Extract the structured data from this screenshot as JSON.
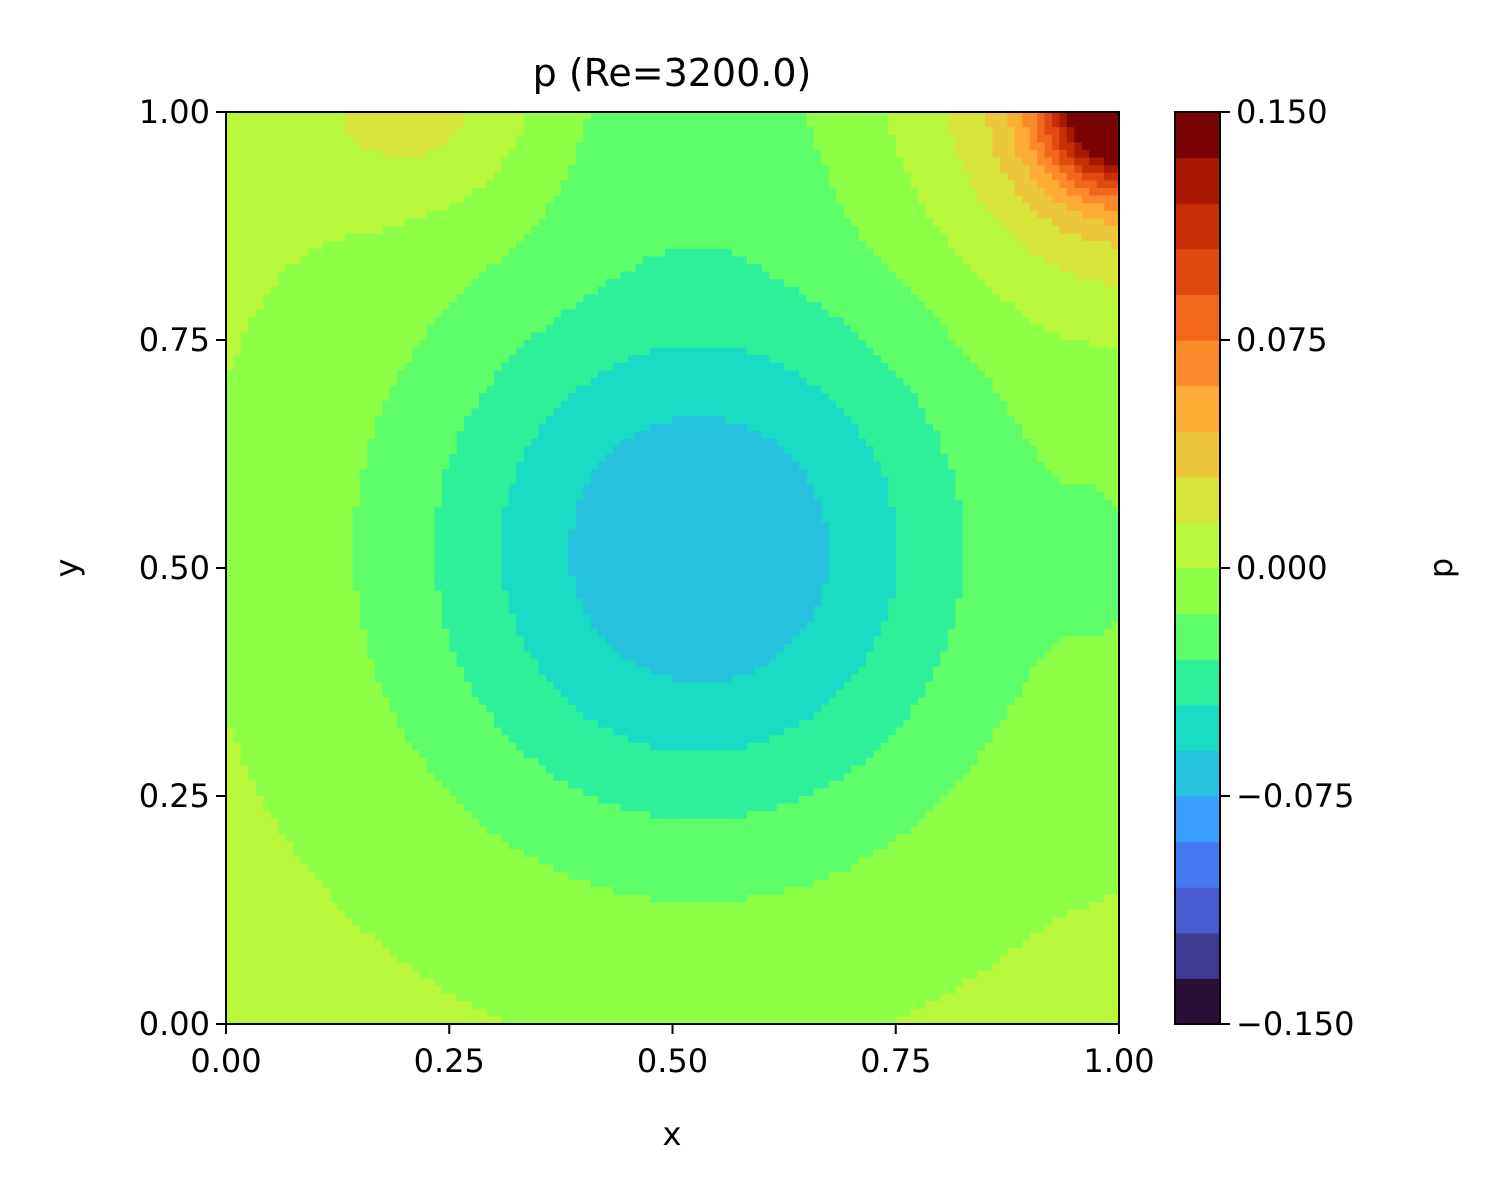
{
  "chart_data": {
    "type": "heatmap",
    "subtype": "filled-contour",
    "title": "p (Re=3200.0)",
    "xlabel": "x",
    "ylabel": "y",
    "xlim": [
      0.0,
      1.0
    ],
    "ylim": [
      0.0,
      1.0
    ],
    "xticks": [
      "0.00",
      "0.25",
      "0.50",
      "0.75",
      "1.00"
    ],
    "yticks": [
      "0.00",
      "0.25",
      "0.50",
      "0.75",
      "1.00"
    ],
    "grid": false,
    "colorbar": {
      "label": "p",
      "range": [
        -0.15,
        0.15
      ],
      "levels": 20,
      "ticks": [
        "−0.150",
        "−0.075",
        "0.000",
        "0.075",
        "0.150"
      ],
      "colors": [
        "#2a0f36",
        "#3f3a8f",
        "#4a5bd0",
        "#4479f0",
        "#3ba0fd",
        "#26c2e0",
        "#1adbc4",
        "#2ff09a",
        "#5efd6a",
        "#8dff46",
        "#b9f83a",
        "#d8e63a",
        "#ecc73a",
        "#fcab35",
        "#fb8a2b",
        "#f2671c",
        "#e04a10",
        "#c72e05",
        "#a81802",
        "#7a0403"
      ]
    },
    "field": {
      "description_of_values": "pressure p sampled at selected (x, y) points",
      "samples": [
        {
          "x": 0.52,
          "y": 0.53,
          "p": -0.07
        },
        {
          "x": 0.52,
          "y": 0.4,
          "p": -0.055
        },
        {
          "x": 0.52,
          "y": 0.26,
          "p": -0.045
        },
        {
          "x": 0.52,
          "y": 0.17,
          "p": -0.03
        },
        {
          "x": 0.52,
          "y": 0.08,
          "p": -0.01
        },
        {
          "x": 0.52,
          "y": 0.02,
          "p": 0.005
        },
        {
          "x": 0.1,
          "y": 0.1,
          "p": 0.005
        },
        {
          "x": 0.97,
          "y": 0.98,
          "p": 0.15
        },
        {
          "x": 0.97,
          "y": 0.92,
          "p": 0.1
        },
        {
          "x": 0.92,
          "y": 0.88,
          "p": 0.05
        },
        {
          "x": 0.24,
          "y": 0.95,
          "p": 0.025
        },
        {
          "x": 0.52,
          "y": 0.95,
          "p": -0.03
        },
        {
          "x": 0.95,
          "y": 0.5,
          "p": -0.01
        }
      ]
    }
  }
}
